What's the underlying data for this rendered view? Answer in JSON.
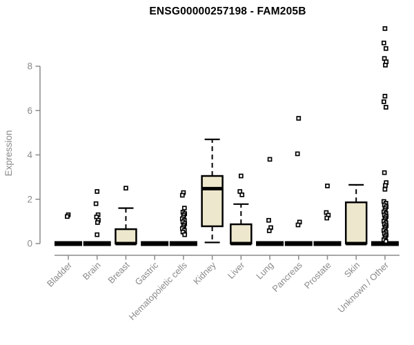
{
  "chart_data": {
    "type": "boxplot",
    "title": "ENSG00000257198 - FAM205B",
    "ylabel": "Expression",
    "xlabel": "",
    "yticks": [
      0,
      2,
      4,
      6,
      8
    ],
    "ylim": [
      0,
      9.9
    ],
    "grid": false,
    "axis_color": "#8a8a8a",
    "box_fill": "#ede8cd",
    "box_stroke": "#000000",
    "outlier_shape": "open-square",
    "categories": [
      "Bladder",
      "Brain",
      "Breast",
      "Gastric",
      "Hematopoietic cells",
      "Kidney",
      "Liver",
      "Lung",
      "Pancreas",
      "Prostate",
      "Skin",
      "Unknown / Other"
    ],
    "boxes": [
      {
        "category": "Bladder",
        "q1": 0,
        "median": 0,
        "q3": 0,
        "whisker_low": 0,
        "whisker_high": 0,
        "outliers": [
          1.3,
          1.22
        ]
      },
      {
        "category": "Brain",
        "q1": 0,
        "median": 0,
        "q3": 0,
        "whisker_low": 0,
        "whisker_high": 0,
        "outliers": [
          2.35,
          1.8,
          1.3,
          1.2,
          1.05,
          0.95,
          0.4
        ]
      },
      {
        "category": "Breast",
        "q1": 0,
        "median": 0,
        "q3": 0.65,
        "whisker_low": 0,
        "whisker_high": 1.6,
        "outliers": [
          2.5
        ]
      },
      {
        "category": "Gastric",
        "q1": 0,
        "median": 0,
        "q3": 0,
        "whisker_low": 0,
        "whisker_high": 0,
        "outliers": []
      },
      {
        "category": "Hematopoietic cells",
        "q1": 0,
        "median": 0,
        "q3": 0,
        "whisker_low": 0,
        "whisker_high": 0,
        "outliers": [
          2.3,
          2.18,
          1.6,
          1.42,
          1.35,
          1.28,
          1.2,
          1.12,
          1.05,
          0.98,
          0.9,
          0.82,
          0.75,
          0.68,
          0.6,
          0.52,
          0.4
        ]
      },
      {
        "category": "Kidney",
        "q1": 0.78,
        "median": 2.48,
        "q3": 3.05,
        "whisker_low": 0.05,
        "whisker_high": 4.7,
        "outliers": []
      },
      {
        "category": "Liver",
        "q1": 0,
        "median": 0,
        "q3": 0.87,
        "whisker_low": 0,
        "whisker_high": 1.78,
        "outliers": [
          3.05,
          2.35,
          2.2
        ]
      },
      {
        "category": "Lung",
        "q1": 0,
        "median": 0,
        "q3": 0,
        "whisker_low": 0,
        "whisker_high": 0,
        "outliers": [
          3.8,
          1.05,
          0.72,
          0.58
        ]
      },
      {
        "category": "Pancreas",
        "q1": 0,
        "median": 0,
        "q3": 0,
        "whisker_low": 0,
        "whisker_high": 0,
        "outliers": [
          5.65,
          4.05,
          0.97,
          0.84
        ]
      },
      {
        "category": "Prostate",
        "q1": 0,
        "median": 0,
        "q3": 0,
        "whisker_low": 0,
        "whisker_high": 0,
        "outliers": [
          2.6,
          1.4,
          1.28,
          1.15
        ]
      },
      {
        "category": "Skin",
        "q1": 0,
        "median": 0,
        "q3": 1.86,
        "whisker_low": 0,
        "whisker_high": 2.65,
        "outliers": []
      },
      {
        "category": "Unknown / Other",
        "q1": 0,
        "median": 0,
        "q3": 0,
        "whisker_low": 0,
        "whisker_high": 0,
        "outliers": [
          9.7,
          9.05,
          8.8,
          8.35,
          8.2,
          8.05,
          6.65,
          6.4,
          6.15,
          3.2,
          2.75,
          2.62,
          2.45,
          1.9,
          1.82,
          1.74,
          1.66,
          1.58,
          1.5,
          1.43,
          1.36,
          1.29,
          1.22,
          1.15,
          1.08,
          1.01,
          0.94,
          0.87,
          0.8,
          0.73,
          0.66,
          0.59,
          0.52,
          0.45,
          0.38,
          0.31,
          0.24,
          0.17,
          0.1
        ]
      }
    ]
  }
}
